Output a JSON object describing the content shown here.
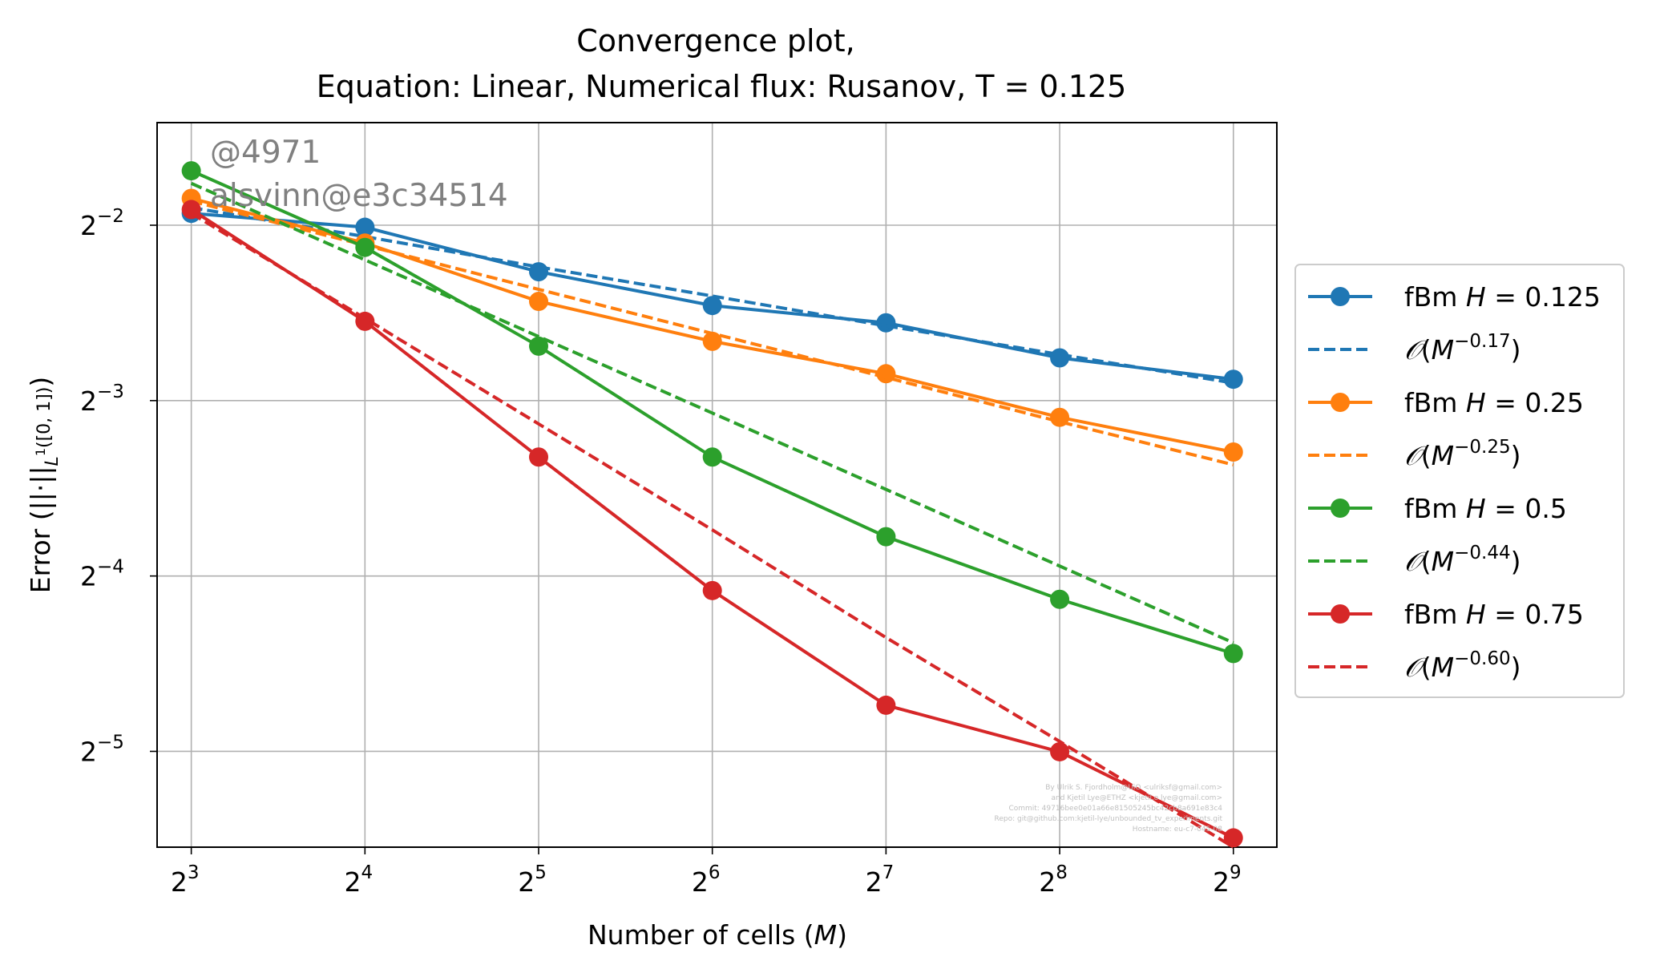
{
  "chart_data": {
    "type": "line",
    "title_line1": "Convergence plot,",
    "title_line2": "Equation: Linear, Numerical flux: Rusanov, T = 0.125",
    "xlabel": "Number of cells (M)",
    "ylabel": "Error (||·||L¹([0,1]))",
    "xscale": "log2",
    "yscale": "log2",
    "xlim": [
      6.98,
      609
    ],
    "ylim": [
      0.0214,
      0.375
    ],
    "grid": true,
    "legend_position": "outside-right",
    "x": [
      8,
      16,
      32,
      64,
      128,
      256,
      512
    ],
    "x_tick_exponents": [
      "3",
      "4",
      "5",
      "6",
      "7",
      "8",
      "9"
    ],
    "y_ticks": [
      {
        "value": 0.25,
        "exponent": "−2"
      },
      {
        "value": 0.125,
        "exponent": "−3"
      },
      {
        "value": 0.0625,
        "exponent": "−4"
      },
      {
        "value": 0.03125,
        "exponent": "−5"
      }
    ],
    "series": [
      {
        "name": "fBm H = 0.125",
        "legend_prefix": "fBm ",
        "legend_var": "H",
        "legend_value": " = 0.125",
        "color": "#1f77b4",
        "style": "solid-marker",
        "values": [
          0.262,
          0.248,
          0.208,
          0.182,
          0.17,
          0.148,
          0.136
        ]
      },
      {
        "name": "O(M^-0.17)",
        "legend_order": "−0.17",
        "color": "#1f77b4",
        "style": "dashed",
        "values": [
          0.268,
          0.239,
          0.212,
          0.189,
          0.168,
          0.15,
          0.134
        ]
      },
      {
        "name": "fBm H = 0.25",
        "legend_prefix": "fBm ",
        "legend_var": "H",
        "legend_value": " = 0.25",
        "color": "#ff7f0e",
        "style": "solid-marker",
        "values": [
          0.278,
          0.233,
          0.185,
          0.158,
          0.139,
          0.117,
          0.102
        ]
      },
      {
        "name": "O(M^-0.25)",
        "legend_order": "−0.25",
        "color": "#ff7f0e",
        "style": "dashed",
        "values": [
          0.275,
          0.231,
          0.194,
          0.163,
          0.137,
          0.115,
          0.097
        ]
      },
      {
        "name": "fBm H = 0.5",
        "legend_prefix": "fBm ",
        "legend_var": "H",
        "legend_value": " = 0.5",
        "color": "#2ca02c",
        "style": "solid-marker",
        "values": [
          0.31,
          0.229,
          0.155,
          0.1,
          0.073,
          0.057,
          0.046
        ]
      },
      {
        "name": "O(M^-0.44)",
        "legend_order": "−0.44",
        "color": "#2ca02c",
        "style": "dashed",
        "values": [
          0.295,
          0.218,
          0.161,
          0.119,
          0.088,
          0.065,
          0.048
        ]
      },
      {
        "name": "fBm H = 0.75",
        "legend_prefix": "fBm ",
        "legend_var": "H",
        "legend_value": " = 0.75",
        "color": "#d62728",
        "style": "solid-marker",
        "values": [
          0.266,
          0.171,
          0.1,
          0.059,
          0.0375,
          0.0312,
          0.0222
        ]
      },
      {
        "name": "O(M^-0.60)",
        "legend_order": "−0.60",
        "color": "#d62728",
        "style": "dashed",
        "values": [
          0.262,
          0.173,
          0.114,
          0.075,
          0.049,
          0.0325,
          0.0214
        ]
      }
    ]
  },
  "watermarks": {
    "run_id": "@4971",
    "commit_tag": "alsvinn@e3c34514"
  },
  "credits": [
    "By Ulrik S. Fjordholm@UiO <ulriksf@gmail.com>",
    "and Kjetil Lye@ETHZ <kjetil.o.lye@gmail.com>",
    "Commit: 49716bee0e01a66e81505245bc42cb8a691e83c4",
    "Repo: git@github.com:kjetil-lye/unbounded_tv_experiments.git",
    "Hostname: eu-c7-045-08"
  ]
}
